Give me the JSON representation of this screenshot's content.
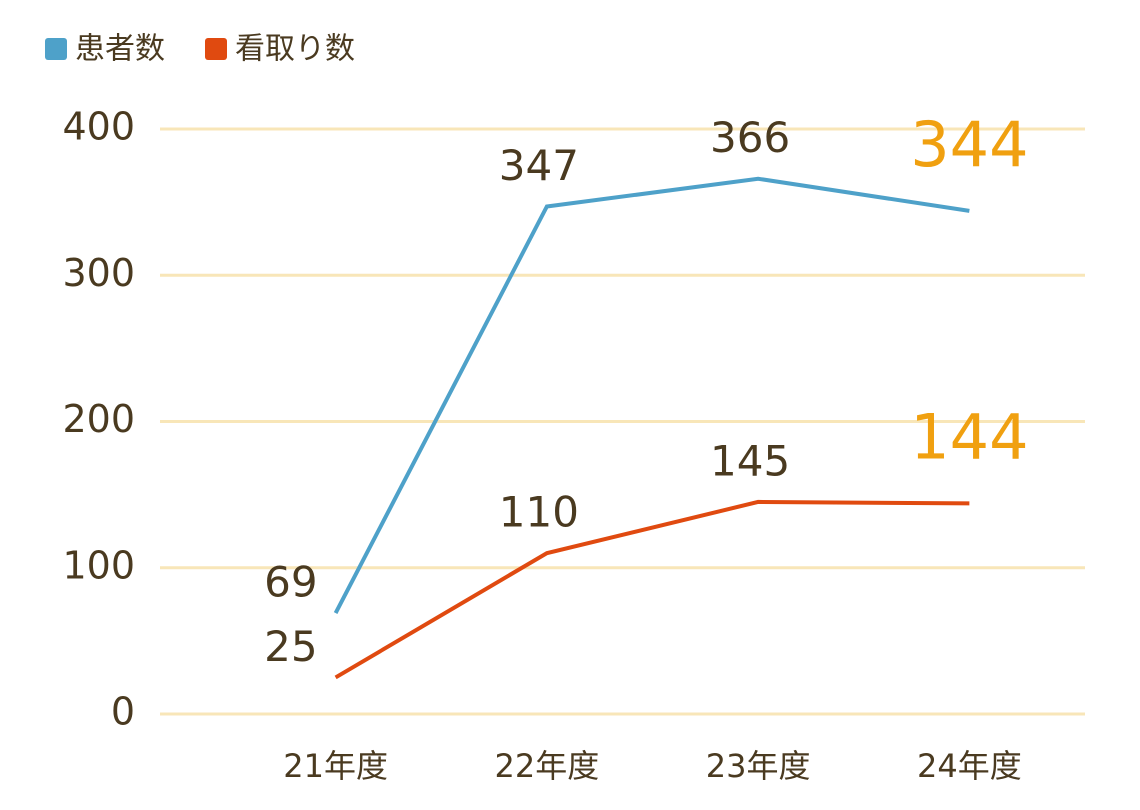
{
  "chart_data": {
    "type": "line",
    "categories": [
      "21年度",
      "22年度",
      "23年度",
      "24年度"
    ],
    "series": [
      {
        "name": "患者数",
        "color": "#4ea1c9",
        "values": [
          69,
          347,
          366,
          344
        ]
      },
      {
        "name": "看取り数",
        "color": "#e04a10",
        "values": [
          25,
          110,
          145,
          144
        ]
      }
    ],
    "ylim": [
      0,
      400
    ],
    "yticks": [
      0,
      100,
      200,
      300,
      400
    ],
    "grid": true,
    "grid_color": "#f8e6b8",
    "highlight_color": "#f0a010",
    "legend": "top-left"
  }
}
